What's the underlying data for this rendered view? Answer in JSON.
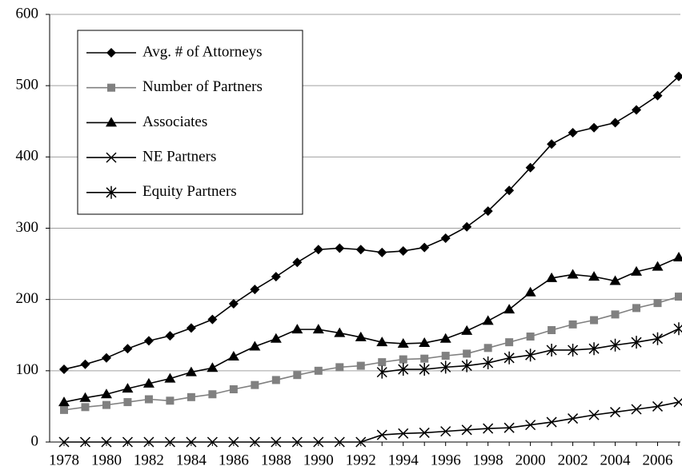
{
  "chart_data": {
    "type": "line",
    "categories": [
      "1978",
      null,
      "1980",
      null,
      "1982",
      null,
      "1984",
      null,
      "1986",
      null,
      "1988",
      null,
      "1990",
      null,
      "1992",
      null,
      "1994",
      null,
      "1996",
      null,
      "1998",
      null,
      "2000",
      null,
      "2002",
      null,
      "2004",
      null,
      "2006",
      null
    ],
    "series": [
      {
        "name": "Avg. # of Attorneys",
        "color": "#000000",
        "marker": "diamond",
        "values": [
          102,
          109,
          118,
          131,
          142,
          149,
          160,
          172,
          194,
          214,
          232,
          252,
          270,
          272,
          270,
          266,
          268,
          273,
          286,
          302,
          324,
          353,
          385,
          418,
          434,
          441,
          448,
          466,
          486,
          513
        ]
      },
      {
        "name": "Number of Partners",
        "color": "#808080",
        "marker": "square",
        "values": [
          45,
          49,
          52,
          56,
          60,
          58,
          63,
          67,
          74,
          80,
          87,
          94,
          100,
          105,
          107,
          112,
          116,
          117,
          121,
          124,
          132,
          140,
          148,
          157,
          165,
          171,
          179,
          188,
          195,
          204
        ]
      },
      {
        "name": "Associates",
        "color": "#000000",
        "marker": "triangle",
        "values": [
          56,
          62,
          67,
          75,
          82,
          89,
          98,
          104,
          120,
          134,
          145,
          158,
          158,
          153,
          147,
          140,
          138,
          139,
          145,
          156,
          170,
          186,
          210,
          230,
          235,
          232,
          226,
          239,
          246,
          259
        ]
      },
      {
        "name": "NE Partners",
        "color": "#000000",
        "marker": "x",
        "values": [
          0,
          0,
          0,
          0,
          0,
          0,
          0,
          0,
          0,
          0,
          0,
          0,
          0,
          0,
          0,
          10,
          12,
          13,
          15,
          17,
          19,
          20,
          24,
          28,
          33,
          38,
          42,
          46,
          50,
          56
        ]
      },
      {
        "name": "Equity Partners",
        "color": "#000000",
        "marker": "asterisk",
        "values": [
          null,
          null,
          null,
          null,
          null,
          null,
          null,
          null,
          null,
          null,
          null,
          null,
          null,
          null,
          null,
          98,
          102,
          102,
          105,
          107,
          111,
          118,
          122,
          129,
          129,
          131,
          136,
          140,
          145,
          159
        ]
      }
    ],
    "ylim": [
      0,
      600
    ],
    "yticks": [
      0,
      100,
      200,
      300,
      400,
      500,
      600
    ],
    "grid": true,
    "legend": "top-left"
  }
}
